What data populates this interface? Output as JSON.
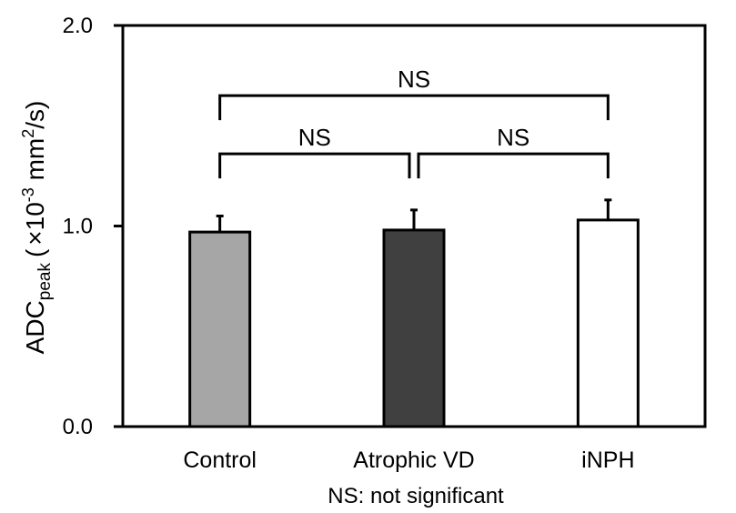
{
  "chart_data": {
    "type": "bar",
    "categories": [
      "Control",
      "Atrophic VD",
      "iNPH"
    ],
    "values": [
      0.97,
      0.98,
      1.03
    ],
    "errors": [
      0.08,
      0.1,
      0.1
    ],
    "bar_colors": [
      "#a6a6a6",
      "#404040",
      "#ffffff"
    ],
    "ylim": [
      0.0,
      2.0
    ],
    "yticks": [
      "0.0",
      "1.0",
      "2.0"
    ],
    "ylabel": {
      "main": "ADC",
      "sub": "peak",
      "open": "(",
      "times": "×10",
      "exp": "-3",
      "unit": " mm",
      "unit_exp": "2",
      "close": "/s)"
    },
    "grid": false,
    "legend": "none",
    "significance": [
      {
        "from": 0,
        "to": 2,
        "label": "NS",
        "level": 1.65
      },
      {
        "from": 0,
        "to": 1,
        "label": "NS",
        "level": 1.36
      },
      {
        "from": 1,
        "to": 2,
        "label": "NS",
        "level": 1.36
      }
    ],
    "footnote": "NS: not significant"
  }
}
